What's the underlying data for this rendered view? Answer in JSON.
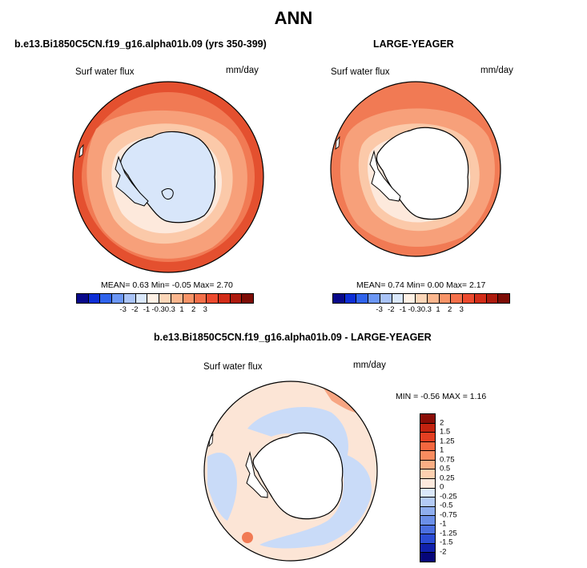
{
  "page": {
    "title": "ANN"
  },
  "panels": {
    "model": {
      "title": "b.e13.Bi1850C5CN.f19_g16.alpha01b.09 (yrs 350-399)",
      "variable": "Surf water flux",
      "units": "mm/day",
      "stats": "MEAN=   0.63  Min=  -0.05  Max=   2.70"
    },
    "obs": {
      "title": "LARGE-YEAGER",
      "variable": "Surf water flux",
      "units": "mm/day",
      "stats": "MEAN=   0.74  Min=   0.00  Max=   2.17"
    },
    "diff": {
      "title": "b.e13.Bi1850C5CN.f19_g16.alpha01b.09 - LARGE-YEAGER",
      "variable": "Surf water flux",
      "units": "mm/day",
      "stats": "MIN =   -0.56 MAX =   1.16"
    }
  },
  "colorbars": {
    "abs": {
      "labels": [
        "-3",
        "-2",
        "-1",
        "-0.3",
        "0.3",
        "1",
        "2",
        "3"
      ],
      "colors": [
        "#08088a",
        "#0d2ed6",
        "#2f63ec",
        "#6c97f5",
        "#a9c3f7",
        "#dae8fb",
        "#fff1e5",
        "#fcd6b8",
        "#fbb68e",
        "#f89468",
        "#f4704a",
        "#ec4a2e",
        "#d22c18",
        "#ad1a0d",
        "#7d0c05"
      ]
    },
    "diff": {
      "labels": [
        "2",
        "1.5",
        "1.25",
        "1",
        "0.75",
        "0.5",
        "0.25",
        "0",
        "-0.25",
        "-0.5",
        "-0.75",
        "-1",
        "-1.25",
        "-1.5",
        "-2"
      ],
      "colors": [
        "#8a0d06",
        "#c3230f",
        "#e33f22",
        "#f4673f",
        "#f88c5f",
        "#fbae84",
        "#fdd0b0",
        "#fdeade",
        "#dbe8fb",
        "#b4cbf6",
        "#8faeef",
        "#6b8fe8",
        "#4b6fe0",
        "#2b4cd4",
        "#1020ab",
        "#06067a"
      ]
    }
  },
  "map_colors": {
    "land": "#ffffff",
    "coast": "#000000",
    "ice_model": "#d8e6fa",
    "ocean_pale": "#fde9dc",
    "ocean_light": "#fbc9a9",
    "ocean_mid": "#f7a07a",
    "ocean_warm": "#f17a54",
    "ocean_hot": "#e4502f",
    "diff_bg": "#fce5d6",
    "diff_blue": "#c9dbf8",
    "diff_red": "#f7a582"
  }
}
